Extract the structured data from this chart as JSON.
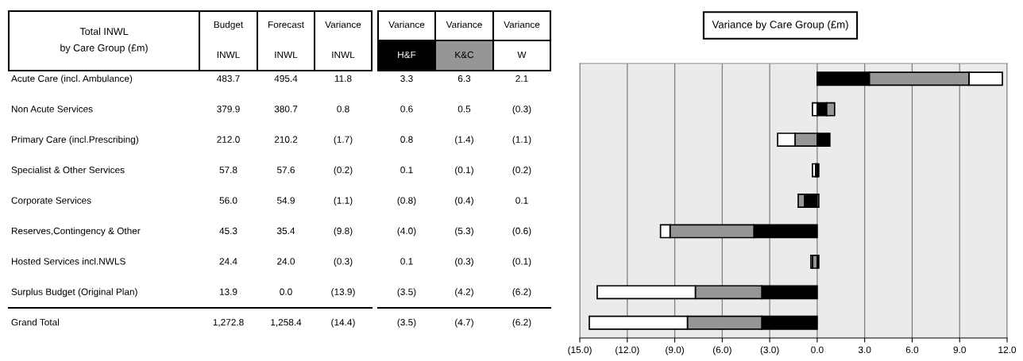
{
  "chart_data": [
    {
      "type": "other",
      "title": "Total INWL\nby Care Group (£m)",
      "categories": [
        "Acute Care (incl. Ambulance)",
        "Non Acute Services",
        "Primary Care (incl.Prescribing)",
        "Specialist & Other Services",
        "Corporate Services",
        "Reserves,Contingency & Other",
        "Hosted Services incl.NWLS",
        "Surplus Budget (Original Plan)",
        "Grand Total"
      ],
      "series": [
        {
          "name": "Budget\nINWL",
          "values": [
            483.7,
            379.9,
            212.0,
            57.8,
            56.0,
            45.3,
            24.4,
            13.9,
            1272.8
          ],
          "value_labels": [
            "483.7",
            "379.9",
            "212.0",
            "57.8",
            "56.0",
            "45.3",
            "24.4",
            "13.9",
            "1,272.8"
          ]
        },
        {
          "name": "Forecast\nINWL",
          "values": [
            495.4,
            380.7,
            210.2,
            57.6,
            54.9,
            35.4,
            24.0,
            0.0,
            1258.4
          ],
          "value_labels": [
            "495.4",
            "380.7",
            "210.2",
            "57.6",
            "54.9",
            "35.4",
            "24.0",
            "0.0",
            "1,258.4"
          ]
        },
        {
          "name": "Variance\nINWL",
          "values": [
            11.8,
            0.8,
            -1.7,
            -0.2,
            -1.1,
            -9.8,
            -0.3,
            -13.9,
            -14.4
          ],
          "value_labels": [
            "11.8",
            "0.8",
            "(1.7)",
            "(0.2)",
            "(1.1)",
            "(9.8)",
            "(0.3)",
            "(13.9)",
            "(14.4)"
          ]
        },
        {
          "name": "Variance\nH&F",
          "color": "#000000",
          "values": [
            3.3,
            0.6,
            0.8,
            0.1,
            -0.8,
            -4.0,
            0.1,
            -3.5,
            -3.5
          ],
          "value_labels": [
            "3.3",
            "0.6",
            "0.8",
            "0.1",
            "(0.8)",
            "(4.0)",
            "0.1",
            "(3.5)",
            "(3.5)"
          ]
        },
        {
          "name": "Variance\nK&C",
          "color": "#969696",
          "values": [
            6.3,
            0.5,
            -1.4,
            -0.1,
            -0.4,
            -5.3,
            -0.3,
            -4.2,
            -4.7
          ],
          "value_labels": [
            "6.3",
            "0.5",
            "(1.4)",
            "(0.1)",
            "(0.4)",
            "(5.3)",
            "(0.3)",
            "(4.2)",
            "(4.7)"
          ]
        },
        {
          "name": "Variance\nW",
          "color": "#ffffff",
          "values": [
            2.1,
            -0.3,
            -1.1,
            -0.2,
            0.1,
            -0.6,
            -0.1,
            -6.2,
            -6.2
          ],
          "value_labels": [
            "2.1",
            "(0.3)",
            "(1.1)",
            "(0.2)",
            "0.1",
            "(0.6)",
            "(0.1)",
            "(6.2)",
            "(6.2)"
          ]
        }
      ]
    },
    {
      "type": "bar",
      "orientation": "horizontal",
      "stacked": true,
      "title": "Variance by Care Group (£m)",
      "categories": [
        null,
        null,
        null,
        null,
        null,
        null,
        null,
        null,
        null
      ],
      "series": [
        {
          "color": "#000000",
          "values": [
            3.3,
            0.6,
            0.8,
            0.1,
            -0.8,
            -4.0,
            0.1,
            -3.5,
            -3.5
          ]
        },
        {
          "color": "#969696",
          "values": [
            6.3,
            0.5,
            -1.4,
            -0.1,
            -0.4,
            -5.3,
            -0.3,
            -4.2,
            -4.7
          ]
        },
        {
          "color": "#ffffff",
          "values": [
            2.1,
            -0.3,
            -1.1,
            -0.2,
            0.1,
            -0.6,
            -0.1,
            -6.2,
            -6.2
          ]
        }
      ],
      "xlim": [
        -15,
        12
      ],
      "xticks": [
        {
          "value": -15,
          "label": "(15.0)"
        },
        {
          "value": -12,
          "label": "(12.0)"
        },
        {
          "value": -9,
          "label": "(9.0)"
        },
        {
          "value": -6,
          "label": "(6.0)"
        },
        {
          "value": -3,
          "label": "(3.0)"
        },
        {
          "value": 0,
          "label": "0.0"
        },
        {
          "value": 3,
          "label": "3.0"
        },
        {
          "value": 6,
          "label": "6.0"
        },
        {
          "value": 9,
          "label": "9.0"
        },
        {
          "value": 12,
          "label": "12.0"
        }
      ],
      "grid": "x",
      "tick_labels": "x"
    }
  ]
}
